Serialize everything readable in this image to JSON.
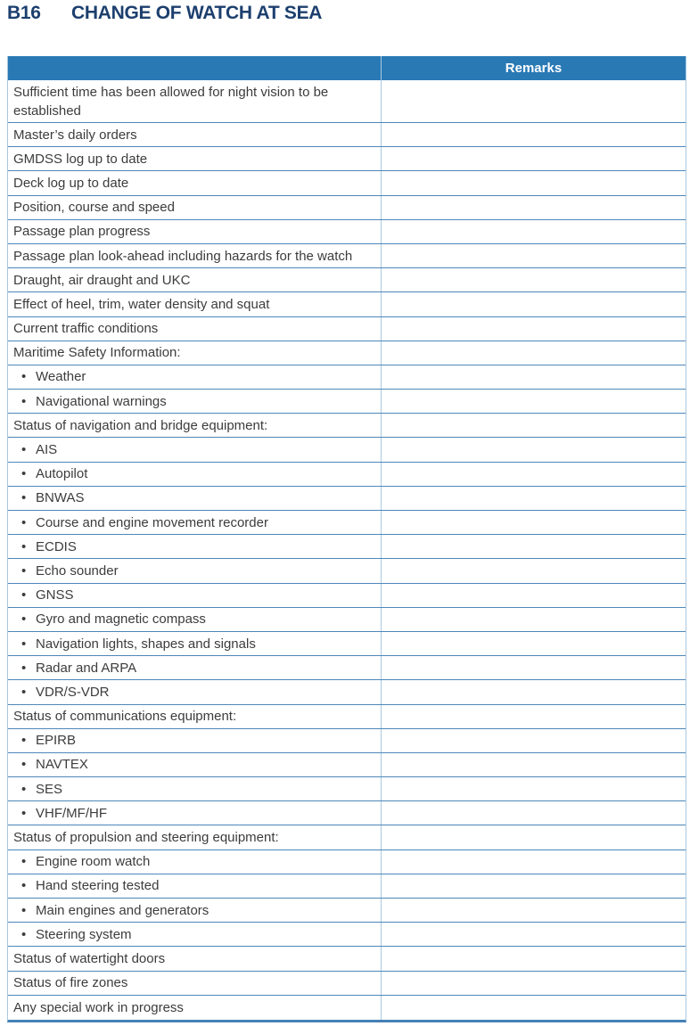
{
  "page": {
    "section_code": "B16",
    "title": "CHANGE OF WATCH AT SEA"
  },
  "table": {
    "header": {
      "item_label": "",
      "remarks_label": "Remarks"
    },
    "bullet_glyph": "•",
    "rows": [
      {
        "label": "Sufficient time has been allowed for night vision to be established",
        "bullet": false
      },
      {
        "label": "Master’s daily orders",
        "bullet": false
      },
      {
        "label": "GMDSS log up to date",
        "bullet": false
      },
      {
        "label": "Deck log up to date",
        "bullet": false
      },
      {
        "label": "Position, course and speed",
        "bullet": false
      },
      {
        "label": "Passage plan progress",
        "bullet": false
      },
      {
        "label": "Passage plan look-ahead including hazards for the watch",
        "bullet": false
      },
      {
        "label": "Draught, air draught and UKC",
        "bullet": false
      },
      {
        "label": "Effect of heel, trim, water density and squat",
        "bullet": false
      },
      {
        "label": "Current traffic conditions",
        "bullet": false
      },
      {
        "label": "Maritime Safety Information:",
        "bullet": false
      },
      {
        "label": "Weather",
        "bullet": true
      },
      {
        "label": "Navigational warnings",
        "bullet": true
      },
      {
        "label": "Status of navigation and bridge equipment:",
        "bullet": false
      },
      {
        "label": "AIS",
        "bullet": true
      },
      {
        "label": "Autopilot",
        "bullet": true
      },
      {
        "label": "BNWAS",
        "bullet": true
      },
      {
        "label": "Course and engine movement recorder",
        "bullet": true
      },
      {
        "label": "ECDIS",
        "bullet": true
      },
      {
        "label": "Echo sounder",
        "bullet": true
      },
      {
        "label": "GNSS",
        "bullet": true
      },
      {
        "label": "Gyro and magnetic compass",
        "bullet": true
      },
      {
        "label": "Navigation lights, shapes and signals",
        "bullet": true
      },
      {
        "label": "Radar and ARPA",
        "bullet": true
      },
      {
        "label": "VDR/S-VDR",
        "bullet": true
      },
      {
        "label": "Status of communications equipment:",
        "bullet": false
      },
      {
        "label": "EPIRB",
        "bullet": true
      },
      {
        "label": "NAVTEX",
        "bullet": true
      },
      {
        "label": "SES",
        "bullet": true
      },
      {
        "label": "VHF/MF/HF",
        "bullet": true
      },
      {
        "label": "Status of propulsion and steering equipment:",
        "bullet": false
      },
      {
        "label": "Engine room watch",
        "bullet": true
      },
      {
        "label": "Hand steering tested",
        "bullet": true
      },
      {
        "label": "Main engines and generators",
        "bullet": true
      },
      {
        "label": "Steering system",
        "bullet": true
      },
      {
        "label": "Status of watertight doors",
        "bullet": false
      },
      {
        "label": "Status of fire zones",
        "bullet": false
      },
      {
        "label": "Any special work in progress",
        "bullet": false
      }
    ]
  },
  "colors": {
    "title_navy": "#1c3f6e",
    "header_bar_blue": "#2979b5",
    "row_line_blue": "#4d87b9",
    "outer_border_light_blue": "#a9c9e2",
    "bottom_border_blue": "#4580b5",
    "header_text": "#ffffff",
    "body_text": "#3c3c3c"
  }
}
